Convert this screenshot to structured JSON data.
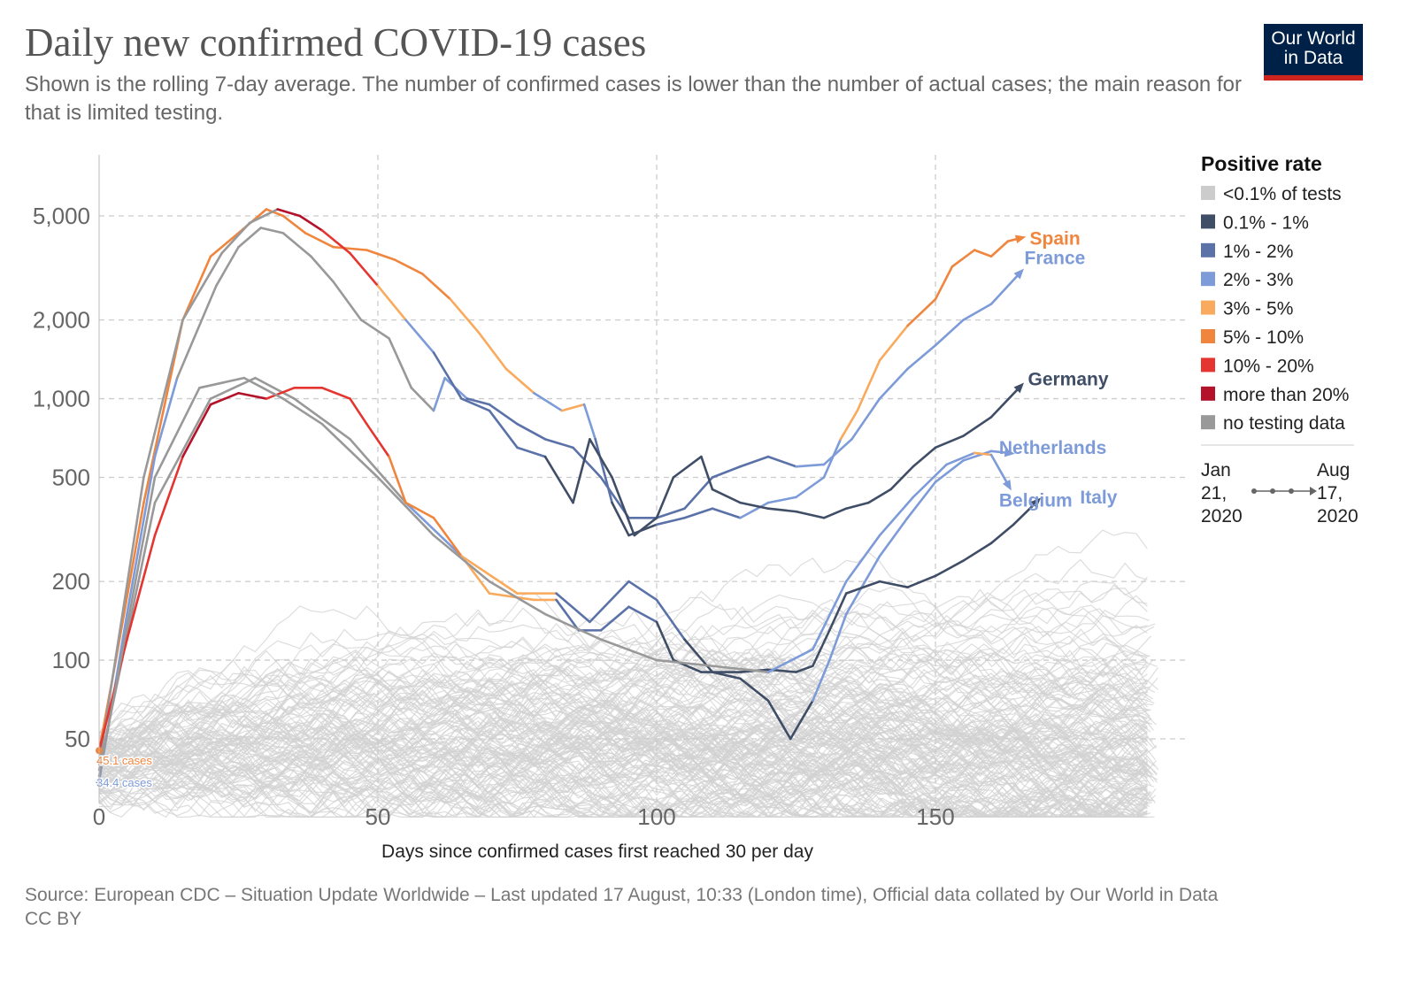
{
  "header": {
    "title": "Daily new confirmed COVID-19 cases",
    "subtitle": "Shown is the rolling 7-day average. The number of confirmed cases is lower than the number of actual cases; the main reason for that is limited testing.",
    "logo_line1": "Our World",
    "logo_line2": "in Data"
  },
  "footer": {
    "source": "Source: European CDC – Situation Update Worldwide – Last updated 17 August, 10:33 (London time), Official data collated by Our World in Data",
    "license": "CC BY"
  },
  "chart_data": {
    "type": "line",
    "title": "Daily new confirmed COVID-19 cases",
    "xlabel": "Days since confirmed cases first reached 30 per day",
    "ylabel": "",
    "yscale": "log",
    "xlim": [
      0,
      195
    ],
    "ylim": [
      28,
      10000
    ],
    "xticks": [
      0,
      50,
      100,
      150
    ],
    "xtick_labels": [
      "0",
      "50",
      "100",
      "150"
    ],
    "yticks": [
      50,
      100,
      200,
      500,
      1000,
      2000,
      5000
    ],
    "ytick_labels": [
      "50",
      "100",
      "200",
      "500",
      "1,000",
      "2,000",
      "5,000"
    ],
    "grid": true,
    "legend": {
      "title": "Positive rate",
      "placement": "right",
      "items": [
        {
          "key": "lt01",
          "label": "<0.1% of tests",
          "color": "#cccccc"
        },
        {
          "key": "d",
          "label": "0.1% - 1%",
          "color": "#3f4e66"
        },
        {
          "key": "m",
          "label": "1% - 2%",
          "color": "#5a72a8"
        },
        {
          "key": "l",
          "label": "2% - 3%",
          "color": "#7d9bd8"
        },
        {
          "key": "y",
          "label": "3% - 5%",
          "color": "#f9aa5c"
        },
        {
          "key": "o",
          "label": "5% - 10%",
          "color": "#f0853e"
        },
        {
          "key": "r",
          "label": "10% - 20%",
          "color": "#e53530"
        },
        {
          "key": "R",
          "label": "more than 20%",
          "color": "#b4122b"
        },
        {
          "key": "g",
          "label": "no testing data",
          "color": "#999999"
        }
      ],
      "timeline_start": "Jan 21, 2020",
      "timeline_end": "Aug 17, 2020",
      "timeline_start_lines": [
        "Jan",
        "21,",
        "2020"
      ],
      "timeline_end_lines": [
        "Aug",
        "17,",
        "2020"
      ]
    },
    "annotations": [
      {
        "text": "45.1 cases",
        "day": 0,
        "value": 45.1,
        "color": "#f0853e"
      },
      {
        "text": "34.4 cases",
        "day": 0,
        "value": 34.4,
        "color": "#7d9bd8"
      }
    ],
    "series": [
      {
        "name": "Spain",
        "label_color": "#f0853e",
        "points": [
          [
            0,
            45,
            "o"
          ],
          [
            3,
            100,
            "o"
          ],
          [
            8,
            400,
            "o"
          ],
          [
            15,
            2000,
            "o"
          ],
          [
            20,
            3500,
            "o"
          ],
          [
            25,
            4300,
            "o"
          ],
          [
            30,
            5300,
            "o"
          ],
          [
            33,
            5000,
            "o"
          ],
          [
            37,
            4300,
            "o"
          ],
          [
            42,
            3800,
            "o"
          ],
          [
            48,
            3700,
            "o"
          ],
          [
            53,
            3400,
            "o"
          ],
          [
            58,
            3000,
            "o"
          ],
          [
            63,
            2400,
            "o"
          ],
          [
            68,
            1800,
            "y"
          ],
          [
            73,
            1300,
            "y"
          ],
          [
            78,
            1050,
            "y"
          ],
          [
            83,
            900,
            "l"
          ],
          [
            87,
            950,
            "y"
          ],
          [
            89,
            700,
            "l"
          ],
          [
            92,
            400,
            "m"
          ],
          [
            95,
            300,
            "d"
          ],
          [
            100,
            330,
            "d"
          ],
          [
            105,
            350,
            "m"
          ],
          [
            110,
            380,
            "m"
          ],
          [
            115,
            350,
            "m"
          ],
          [
            120,
            400,
            "l"
          ],
          [
            125,
            420,
            "l"
          ],
          [
            130,
            500,
            "l"
          ],
          [
            133,
            700,
            "l"
          ],
          [
            136,
            900,
            "y"
          ],
          [
            140,
            1400,
            "y"
          ],
          [
            145,
            1900,
            "y"
          ],
          [
            150,
            2400,
            "o"
          ],
          [
            153,
            3200,
            "o"
          ],
          [
            157,
            3700,
            "o"
          ],
          [
            160,
            3500,
            "o"
          ],
          [
            163,
            4000,
            "o"
          ],
          [
            165,
            4100,
            "o"
          ]
        ]
      },
      {
        "name": "France",
        "label_color": "#7d9bd8",
        "points": [
          [
            0,
            34.4,
            "l"
          ],
          [
            5,
            150,
            "l"
          ],
          [
            10,
            600,
            "l"
          ],
          [
            14,
            1200,
            "l"
          ],
          [
            17,
            1700,
            "g"
          ],
          [
            21,
            2700,
            "g"
          ],
          [
            25,
            3800,
            "g"
          ],
          [
            29,
            4500,
            "g"
          ],
          [
            33,
            4300,
            "g"
          ],
          [
            38,
            3500,
            "g"
          ],
          [
            42,
            2800,
            "g"
          ],
          [
            47,
            2000,
            "g"
          ],
          [
            52,
            1700,
            "g"
          ],
          [
            56,
            1100,
            "g"
          ],
          [
            60,
            900,
            "g"
          ],
          [
            62,
            1200,
            "l"
          ],
          [
            66,
            1000,
            "l"
          ],
          [
            70,
            950,
            "m"
          ],
          [
            75,
            800,
            "m"
          ],
          [
            80,
            700,
            "m"
          ],
          [
            85,
            650,
            "m"
          ],
          [
            90,
            500,
            "m"
          ],
          [
            95,
            350,
            "m"
          ],
          [
            100,
            350,
            "m"
          ],
          [
            105,
            380,
            "m"
          ],
          [
            110,
            500,
            "m"
          ],
          [
            115,
            550,
            "m"
          ],
          [
            120,
            600,
            "m"
          ],
          [
            125,
            550,
            "m"
          ],
          [
            130,
            560,
            "l"
          ],
          [
            135,
            700,
            "l"
          ],
          [
            140,
            1000,
            "l"
          ],
          [
            145,
            1300,
            "l"
          ],
          [
            150,
            1600,
            "l"
          ],
          [
            155,
            2000,
            "l"
          ],
          [
            160,
            2300,
            "l"
          ],
          [
            165,
            3000,
            "l"
          ]
        ]
      },
      {
        "name": "Germany",
        "label_color": "#3f4e66",
        "points": [
          [
            0,
            40,
            "g"
          ],
          [
            8,
            500,
            "g"
          ],
          [
            15,
            2000,
            "g"
          ],
          [
            22,
            3600,
            "g"
          ],
          [
            27,
            4700,
            "g"
          ],
          [
            32,
            5300,
            "g"
          ],
          [
            36,
            5000,
            "R"
          ],
          [
            40,
            4400,
            "R"
          ],
          [
            45,
            3600,
            "r"
          ],
          [
            50,
            2700,
            "r"
          ],
          [
            55,
            2000,
            "y"
          ],
          [
            60,
            1500,
            "l"
          ],
          [
            65,
            1000,
            "m"
          ],
          [
            70,
            900,
            "m"
          ],
          [
            75,
            650,
            "m"
          ],
          [
            80,
            600,
            "m"
          ],
          [
            85,
            400,
            "d"
          ],
          [
            88,
            700,
            "d"
          ],
          [
            92,
            500,
            "d"
          ],
          [
            96,
            300,
            "d"
          ],
          [
            100,
            350,
            "d"
          ],
          [
            103,
            500,
            "d"
          ],
          [
            108,
            600,
            "d"
          ],
          [
            110,
            450,
            "d"
          ],
          [
            115,
            400,
            "d"
          ],
          [
            120,
            380,
            "d"
          ],
          [
            125,
            370,
            "d"
          ],
          [
            130,
            350,
            "d"
          ],
          [
            134,
            380,
            "d"
          ],
          [
            138,
            400,
            "d"
          ],
          [
            142,
            450,
            "d"
          ],
          [
            146,
            550,
            "d"
          ],
          [
            150,
            650,
            "d"
          ],
          [
            155,
            720,
            "d"
          ],
          [
            160,
            850,
            "d"
          ],
          [
            165,
            1100,
            "d"
          ]
        ]
      },
      {
        "name": "Netherlands",
        "label_color": "#7d9bd8",
        "points": [
          [
            0,
            38,
            "g"
          ],
          [
            10,
            400,
            "g"
          ],
          [
            20,
            1000,
            "g"
          ],
          [
            28,
            1200,
            "g"
          ],
          [
            35,
            1000,
            "g"
          ],
          [
            45,
            700,
            "g"
          ],
          [
            55,
            400,
            "g"
          ],
          [
            65,
            250,
            "l"
          ],
          [
            75,
            180,
            "y"
          ],
          [
            82,
            180,
            "y"
          ],
          [
            88,
            140,
            "m"
          ],
          [
            95,
            200,
            "m"
          ],
          [
            100,
            170,
            "m"
          ],
          [
            105,
            120,
            "m"
          ],
          [
            110,
            90,
            "d"
          ],
          [
            115,
            85,
            "d"
          ],
          [
            120,
            70,
            "d"
          ],
          [
            124,
            50,
            "d"
          ],
          [
            128,
            70,
            "d"
          ],
          [
            131,
            100,
            "l"
          ],
          [
            134,
            150,
            "l"
          ],
          [
            140,
            250,
            "l"
          ],
          [
            145,
            350,
            "l"
          ],
          [
            150,
            480,
            "l"
          ],
          [
            155,
            580,
            "l"
          ],
          [
            160,
            630,
            "l"
          ],
          [
            163,
            620,
            "l"
          ]
        ]
      },
      {
        "name": "Italy",
        "label_color": "#7d9bd8",
        "points": [
          [
            0,
            45,
            "r"
          ],
          [
            5,
            120,
            "r"
          ],
          [
            10,
            300,
            "r"
          ],
          [
            15,
            600,
            "r"
          ],
          [
            20,
            950,
            "R"
          ],
          [
            25,
            1050,
            "R"
          ],
          [
            30,
            1000,
            "R"
          ],
          [
            35,
            1100,
            "r"
          ],
          [
            40,
            1100,
            "r"
          ],
          [
            45,
            1000,
            "r"
          ],
          [
            48,
            800,
            "r"
          ],
          [
            52,
            600,
            "r"
          ],
          [
            55,
            400,
            "o"
          ],
          [
            60,
            350,
            "o"
          ],
          [
            65,
            250,
            "o"
          ],
          [
            70,
            180,
            "y"
          ],
          [
            78,
            170,
            "y"
          ],
          [
            82,
            170,
            "y"
          ],
          [
            86,
            130,
            "m"
          ],
          [
            90,
            130,
            "m"
          ],
          [
            95,
            160,
            "m"
          ],
          [
            100,
            140,
            "m"
          ],
          [
            103,
            100,
            "d"
          ],
          [
            108,
            90,
            "d"
          ],
          [
            115,
            90,
            "d"
          ],
          [
            120,
            92,
            "d"
          ],
          [
            125,
            90,
            "d"
          ],
          [
            128,
            95,
            "d"
          ],
          [
            131,
            130,
            "d"
          ],
          [
            134,
            180,
            "d"
          ],
          [
            140,
            200,
            "d"
          ],
          [
            145,
            190,
            "d"
          ],
          [
            150,
            210,
            "d"
          ],
          [
            155,
            240,
            "d"
          ],
          [
            160,
            280,
            "d"
          ],
          [
            164,
            330,
            "d"
          ],
          [
            168,
            400,
            "d"
          ]
        ]
      },
      {
        "name": "Belgium",
        "label_color": "#7d9bd8",
        "points": [
          [
            0,
            36,
            "g"
          ],
          [
            10,
            500,
            "g"
          ],
          [
            18,
            1100,
            "g"
          ],
          [
            26,
            1200,
            "g"
          ],
          [
            33,
            1000,
            "g"
          ],
          [
            40,
            800,
            "g"
          ],
          [
            50,
            500,
            "g"
          ],
          [
            60,
            300,
            "g"
          ],
          [
            70,
            200,
            "g"
          ],
          [
            80,
            150,
            "g"
          ],
          [
            90,
            120,
            "g"
          ],
          [
            100,
            100,
            "g"
          ],
          [
            110,
            95,
            "g"
          ],
          [
            120,
            90,
            "g"
          ],
          [
            128,
            110,
            "l"
          ],
          [
            134,
            200,
            "l"
          ],
          [
            140,
            300,
            "l"
          ],
          [
            146,
            420,
            "l"
          ],
          [
            152,
            560,
            "l"
          ],
          [
            157,
            620,
            "l"
          ],
          [
            160,
            610,
            "y"
          ],
          [
            163,
            470,
            "l"
          ]
        ]
      }
    ]
  }
}
